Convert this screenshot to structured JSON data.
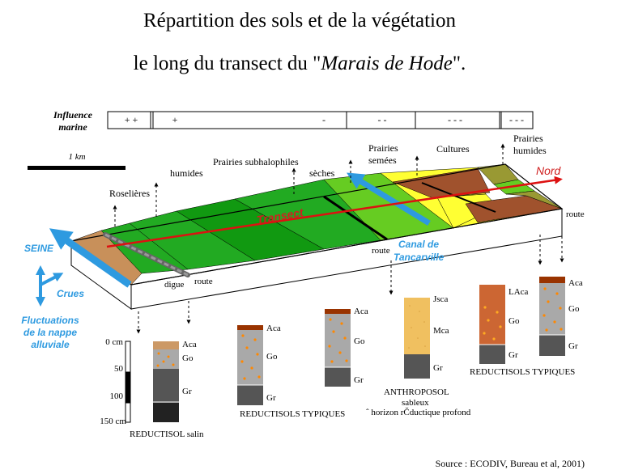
{
  "title": {
    "line1": "Répartition des sols et de la végétation",
    "line2_prefix": "le long du transect du \"",
    "line2_italic": "Marais de Hode",
    "line2_suffix": "\"."
  },
  "influence": {
    "label_line1": "Influence",
    "label_line2": "marine",
    "cells": [
      "+ +",
      "+",
      "-",
      "- -",
      "- - -",
      "- - -"
    ]
  },
  "scale": {
    "label": "1 km"
  },
  "vegetation": {
    "roselieres": "Roselières",
    "humides": "humides",
    "subhalophiles": "Prairies subhalophiles",
    "seches": "sèches",
    "prairies_semees_1": "Prairies",
    "prairies_semees_2": "semées",
    "cultures": "Cultures",
    "prairies_humides_1": "Prairies",
    "prairies_humides_2": "humides"
  },
  "map_labels": {
    "nord": "Nord",
    "transect": "Transect",
    "route_right": "route",
    "route_mid": "route",
    "route_left": "route",
    "digue": "digue",
    "seine": "SEINE",
    "crues": "Crues",
    "nappe_1": "Fluctuations",
    "nappe_2": "de la nappe",
    "nappe_3": "alluviale",
    "canal_1": "Canal de",
    "canal_2": "Tancarville"
  },
  "depth_scale": [
    "0 cm",
    "50",
    "100",
    "150 cm"
  ],
  "profiles": {
    "p1": {
      "horizons": [
        "Aca",
        "Go",
        "Gr"
      ],
      "name": "REDUCTISOL  salin"
    },
    "p2": {
      "horizons": [
        "Aca",
        "Go",
        "Gr"
      ]
    },
    "p3": {
      "horizons": [
        "Aca",
        "Go",
        "Gr"
      ]
    },
    "group_23_name": "REDUCTISOLS TYPIQUES",
    "p4": {
      "horizons": [
        "Jsca",
        "Mca",
        "Gr"
      ],
      "name_1": "ANTHROPOSOL",
      "name_2": "sableux",
      "name_3": "ˆ horizon rČductique profond"
    },
    "p5": {
      "horizons": [
        "LAca",
        "Go",
        "Gr"
      ]
    },
    "p6": {
      "horizons": [
        "Aca",
        "Go",
        "Gr"
      ]
    },
    "group_56_name": "REDUCTISOLS TYPIQUES"
  },
  "source": "Source : ECODIV, Bureau et al, 2001)",
  "colors": {
    "green_dark": "#119911",
    "green_mid": "#22aa22",
    "green_light": "#66cc22",
    "yellow": "#ffff33",
    "brown": "#a0522d",
    "olive": "#999933",
    "sand_bank": "#c8905a",
    "transect_red": "#dd1111",
    "water_blue": "#2e9ae0",
    "soil_dark_gray": "#555555",
    "soil_gray": "#a9a9a9",
    "soil_orange_brown": "#cc6633",
    "soil_sand": "#f0c060"
  }
}
